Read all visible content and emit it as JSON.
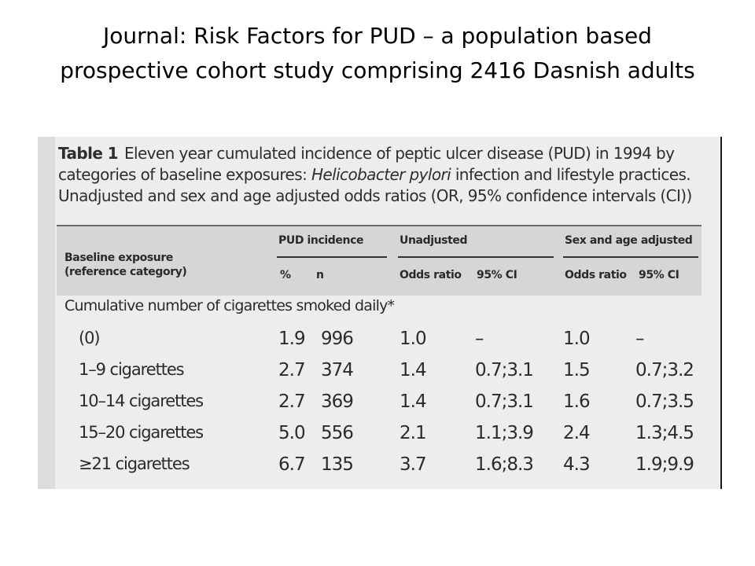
{
  "slide": {
    "title": "Journal: Risk Factors for PUD – a population based prospective cohort study comprising 2416 Dasnish adults"
  },
  "table": {
    "caption_label": "Table 1",
    "caption_part1": "Eleven year cumulated incidence of peptic ulcer disease (PUD) in 1994 by categories of baseline exposures: ",
    "caption_italic": "Helicobacter pylori",
    "caption_part2": " infection and lifestyle practices. Unadjusted and sex and age adjusted odds ratios (OR, 95% confidence intervals (CI))",
    "headers": {
      "baseline_line1": "Baseline exposure",
      "baseline_line2": "(reference category)",
      "pud_incidence": "PUD incidence",
      "pct": "%",
      "n": "n",
      "unadjusted": "Unadjusted",
      "unadj_or": "Odds ratio",
      "unadj_ci": "95% CI",
      "adjusted": "Sex and age adjusted",
      "adj_or": "Odds ratio",
      "adj_ci": "95% CI"
    },
    "section": "Cumulative number of cigarettes smoked daily*",
    "rows": [
      {
        "label": "(0)",
        "pct": "1.9",
        "n": "996",
        "or1": "1.0",
        "ci1": "–",
        "or2": "1.0",
        "ci2": "–"
      },
      {
        "label": "1–9 cigarettes",
        "pct": "2.7",
        "n": "374",
        "or1": "1.4",
        "ci1": "0.7;3.1",
        "or2": "1.5",
        "ci2": "0.7;3.2"
      },
      {
        "label": "10–14 cigarettes",
        "pct": "2.7",
        "n": "369",
        "or1": "1.4",
        "ci1": "0.7;3.1",
        "or2": "1.6",
        "ci2": "0.7;3.5"
      },
      {
        "label": "15–20 cigarettes",
        "pct": "5.0",
        "n": "556",
        "or1": "2.1",
        "ci1": "1.1;3.9",
        "or2": "2.4",
        "ci2": "1.3;4.5"
      },
      {
        "label": "≥21 cigarettes",
        "pct": "6.7",
        "n": "135",
        "or1": "3.7",
        "ci1": "1.6;8.3",
        "or2": "4.3",
        "ci2": "1.9;9.9"
      }
    ]
  }
}
